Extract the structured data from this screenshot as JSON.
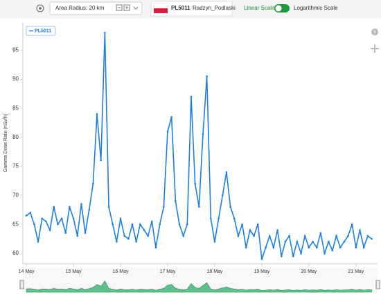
{
  "toolbar": {
    "radius": "Area Radius: 20 km",
    "station_id": "PL5011",
    "station_name": "Radzyn_Podlaski",
    "linear": "Linear Scale",
    "log": "Logarithmic Scale"
  },
  "chart_data": {
    "type": "line",
    "y_label": "Gamma Dose Rate (nSv/h)",
    "x": [
      0,
      2,
      4,
      6,
      8,
      10,
      12,
      14,
      16,
      18,
      20,
      22,
      24,
      26,
      28,
      30,
      32,
      34,
      36,
      38,
      40,
      42,
      44,
      46,
      48,
      50,
      52,
      54,
      56,
      58,
      60,
      62,
      64,
      66,
      68,
      70,
      72,
      74,
      76,
      78,
      80,
      82,
      84,
      86,
      88,
      90,
      92,
      94,
      96,
      98,
      100,
      102,
      104,
      106,
      108,
      110,
      112,
      114,
      116,
      118,
      120,
      122,
      124,
      126,
      128,
      130,
      132,
      134,
      136,
      138,
      140,
      142,
      144,
      146,
      148,
      150,
      152,
      154,
      156,
      158,
      160,
      162,
      164,
      166,
      168,
      170,
      172,
      174,
      176
    ],
    "series": [
      {
        "name": "PL5011",
        "color": "#1a7fe0",
        "values": [
          66.5,
          67,
          65,
          62,
          66,
          65.5,
          64,
          68,
          65,
          66,
          63.5,
          68,
          66,
          63,
          68.5,
          63.5,
          67.5,
          72,
          84,
          76,
          98,
          68,
          65,
          62,
          66,
          63,
          62.5,
          65,
          62,
          65,
          64,
          63,
          65.5,
          61,
          65,
          68,
          81,
          83.5,
          69,
          65,
          63,
          65,
          87,
          72,
          68,
          80.5,
          90.5,
          66,
          62,
          66,
          70,
          74,
          68,
          66,
          63,
          65,
          61,
          64,
          63,
          65,
          59,
          61,
          63,
          61,
          64,
          59.5,
          62,
          63,
          59.5,
          62,
          60,
          63,
          61,
          62,
          61,
          63.5,
          60,
          62,
          60.5,
          63,
          61,
          62,
          63,
          65,
          61,
          64,
          61,
          63,
          62.5
        ]
      }
    ],
    "xlim": [
      -1.8,
      179
    ],
    "ylim": [
      58.2,
      99.7
    ],
    "xticks": [
      {
        "value": 0,
        "label": "14 May"
      },
      {
        "value": 24,
        "label": "15 May"
      },
      {
        "value": 48,
        "label": "16 May"
      },
      {
        "value": 72,
        "label": "17 May"
      },
      {
        "value": 96,
        "label": "18 May"
      },
      {
        "value": 120,
        "label": "19 May"
      },
      {
        "value": 144,
        "label": "20 May"
      },
      {
        "value": 168,
        "label": "21 May"
      }
    ],
    "yticks": [
      60,
      65,
      70,
      75,
      80,
      85,
      90,
      95
    ],
    "grid": false,
    "legend": "top-left"
  }
}
